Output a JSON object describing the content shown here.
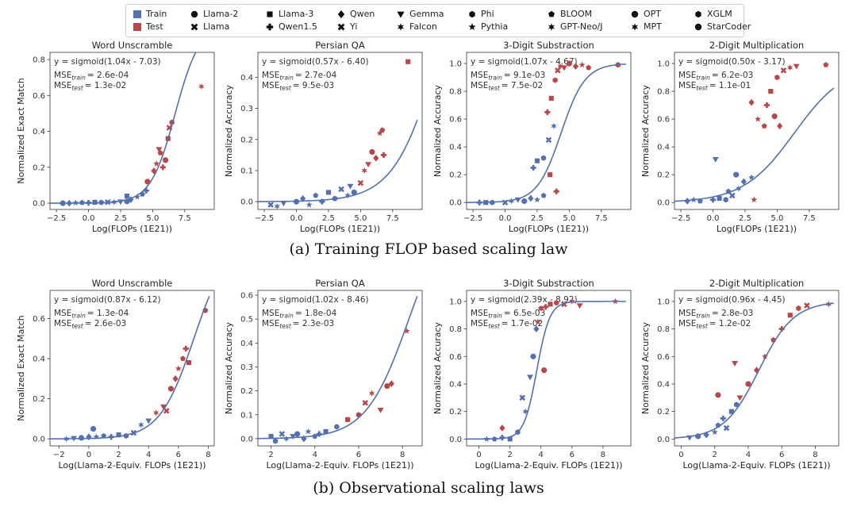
{
  "legend": {
    "groups": [
      {
        "label": "Train",
        "color": "#5470b0",
        "id": "train"
      },
      {
        "label": "Test",
        "color": "#b9474a",
        "id": "test"
      }
    ],
    "models": [
      {
        "label": "Llama-2",
        "marker": "circle"
      },
      {
        "label": "Llama",
        "marker": "x"
      },
      {
        "label": "Llama-3",
        "marker": "square"
      },
      {
        "label": "Qwen1.5",
        "marker": "plus"
      },
      {
        "label": "Qwen",
        "marker": "diamond"
      },
      {
        "label": "Yi",
        "marker": "x"
      },
      {
        "label": "Gemma",
        "marker": "triangle"
      },
      {
        "label": "Falcon",
        "marker": "star6"
      },
      {
        "label": "Phi",
        "marker": "hexagon"
      },
      {
        "label": "Pythia",
        "marker": "star"
      },
      {
        "label": "BLOOM",
        "marker": "pentagon"
      },
      {
        "label": "GPT-Neo/J",
        "marker": "star6"
      },
      {
        "label": "OPT",
        "marker": "circle"
      },
      {
        "label": "MPT",
        "marker": "star6"
      },
      {
        "label": "XGLM",
        "marker": "hexagon"
      },
      {
        "label": "StarCoder",
        "marker": "circle"
      }
    ]
  },
  "captions": {
    "top": "(a) Training FLOP based scaling law",
    "bottom": "(b) Observational scaling laws"
  },
  "chart_data": [
    {
      "type": "scatter",
      "title": "Word Unscramble",
      "xlabel": "Log(FLOPs (1E21))",
      "ylabel": "Normalized Exact Match",
      "xlim": [
        -3,
        9.8
      ],
      "ylim": [
        -0.035,
        0.84
      ],
      "xticks": [
        -2.5,
        0,
        2.5,
        5,
        7.5
      ],
      "xtick_labels": [
        "−2.5",
        "0.0",
        "2.5",
        "5.0",
        "7.5"
      ],
      "yticks": [
        0,
        0.2,
        0.4,
        0.6,
        0.8
      ],
      "ytick_labels": [
        "0.0",
        "0.2",
        "0.4",
        "0.6",
        "0.8"
      ],
      "fit": {
        "a": 1.04,
        "b": -7.03,
        "scale": 1.0
      },
      "equation": "y = sigmoid(1.04x - 7.03)",
      "mse_train_value": "= 2.6e-04",
      "mse_test_value": "= 1.3e-02",
      "train": [
        [
          -2,
          0
        ],
        [
          -1.5,
          0
        ],
        [
          -1,
          0.002
        ],
        [
          -0.5,
          0.003
        ],
        [
          0,
          0.002
        ],
        [
          0.5,
          0.005
        ],
        [
          1,
          0.004
        ],
        [
          1.5,
          0.006
        ],
        [
          2,
          0.006
        ],
        [
          2.5,
          0.008
        ],
        [
          3,
          0.01
        ],
        [
          3.3,
          0.02
        ],
        [
          3.8,
          0.035
        ],
        [
          4.2,
          0.05
        ],
        [
          4.5,
          0.07
        ],
        [
          3,
          0.04
        ]
      ],
      "test": [
        [
          4.6,
          0.12
        ],
        [
          5.1,
          0.18
        ],
        [
          5.3,
          0.22
        ],
        [
          5.6,
          0.28
        ],
        [
          5.8,
          0.2
        ],
        [
          6.2,
          0.36
        ],
        [
          6.5,
          0.45
        ],
        [
          6.3,
          0.42
        ],
        [
          8.8,
          0.65
        ],
        [
          5.5,
          0.3
        ],
        [
          6,
          0.24
        ]
      ]
    },
    {
      "type": "scatter",
      "title": "Persian QA",
      "xlabel": "Log(FLOPs (1E21))",
      "ylabel": "Normalized Accuracy",
      "xlim": [
        -3,
        9.8
      ],
      "ylim": [
        -0.025,
        0.48
      ],
      "xticks": [
        -2.5,
        0,
        2.5,
        5,
        7.5
      ],
      "xtick_labels": [
        "−2.5",
        "0.0",
        "2.5",
        "5.0",
        "7.5"
      ],
      "yticks": [
        0,
        0.1,
        0.2,
        0.3,
        0.4
      ],
      "ytick_labels": [
        "0.0",
        "0.1",
        "0.2",
        "0.3",
        "0.4"
      ],
      "fit": {
        "a": 0.57,
        "b": -6.4,
        "scale": 1.0
      },
      "equation": "y = sigmoid(0.57x - 6.40)",
      "mse_train_value": "= 2.7e-04",
      "mse_test_value": "= 9.5e-03",
      "train": [
        [
          -2,
          -0.01
        ],
        [
          -1.5,
          -0.015
        ],
        [
          -1,
          -0.005
        ],
        [
          0,
          0.0
        ],
        [
          0.5,
          0.01
        ],
        [
          1,
          -0.01
        ],
        [
          1.5,
          0.02
        ],
        [
          2,
          0.0
        ],
        [
          2.5,
          0.03
        ],
        [
          3,
          0.01
        ],
        [
          3.5,
          0.04
        ],
        [
          4,
          0.02
        ],
        [
          4.2,
          0.05
        ],
        [
          4.5,
          0.03
        ]
      ],
      "test": [
        [
          5,
          0.06
        ],
        [
          5.3,
          0.1
        ],
        [
          5.6,
          0.12
        ],
        [
          5.9,
          0.16
        ],
        [
          6.2,
          0.14
        ],
        [
          6.5,
          0.22
        ],
        [
          6.7,
          0.23
        ],
        [
          6.8,
          0.15
        ],
        [
          8.7,
          0.45
        ]
      ]
    },
    {
      "type": "scatter",
      "title": "3-Digit Substraction",
      "xlabel": "Log(FLOPs (1E21))",
      "ylabel": "Normalized Accuracy",
      "xlim": [
        -3,
        9.8
      ],
      "ylim": [
        -0.05,
        1.08
      ],
      "xticks": [
        -2.5,
        0,
        2.5,
        5,
        7.5
      ],
      "xtick_labels": [
        "−2.5",
        "0.0",
        "2.5",
        "5.0",
        "7.5"
      ],
      "yticks": [
        0,
        0.2,
        0.4,
        0.6,
        0.8,
        1.0
      ],
      "ytick_labels": [
        "0.0",
        "0.2",
        "0.4",
        "0.6",
        "0.8",
        "1.0"
      ],
      "fit": {
        "a": 1.07,
        "b": -4.67,
        "scale": 1.0
      },
      "equation": "y = sigmoid(1.07x - 4.67)",
      "mse_train_value": "= 9.1e-03",
      "mse_test_value": "= 7.5e-02",
      "train": [
        [
          -2,
          0
        ],
        [
          -1.5,
          0
        ],
        [
          -1,
          0
        ],
        [
          0,
          0
        ],
        [
          0.5,
          0.01
        ],
        [
          1,
          0.02
        ],
        [
          1.5,
          0.01
        ],
        [
          2,
          0.03
        ],
        [
          2.5,
          0.02
        ],
        [
          3,
          0.05
        ],
        [
          2.2,
          0.25
        ],
        [
          2.5,
          0.3
        ],
        [
          3,
          0.32
        ],
        [
          3.4,
          0.45
        ],
        [
          3.8,
          0.55
        ]
      ],
      "test": [
        [
          3.3,
          0.65
        ],
        [
          3.6,
          0.75
        ],
        [
          3.9,
          0.88
        ],
        [
          4.1,
          0.95
        ],
        [
          4.3,
          0.98
        ],
        [
          4.6,
          0.97
        ],
        [
          5,
          1.0
        ],
        [
          5.5,
          0.98
        ],
        [
          6,
          0.99
        ],
        [
          6.5,
          0.97
        ],
        [
          4,
          0.08
        ],
        [
          3.5,
          0.2
        ],
        [
          8.8,
          0.99
        ]
      ]
    },
    {
      "type": "scatter",
      "title": "2-Digit Multiplication",
      "xlabel": "Log(FLOPs (1E21))",
      "ylabel": "Normalized Accuracy",
      "xlim": [
        -3,
        9.8
      ],
      "ylim": [
        -0.05,
        1.08
      ],
      "xticks": [
        -2.5,
        0,
        2.5,
        5,
        7.5
      ],
      "xtick_labels": [
        "−2.5",
        "0.0",
        "2.5",
        "5.0",
        "7.5"
      ],
      "yticks": [
        0,
        0.2,
        0.4,
        0.6,
        0.8,
        1.0
      ],
      "ytick_labels": [
        "0.0",
        "0.2",
        "0.4",
        "0.6",
        "0.8",
        "1.0"
      ],
      "fit": {
        "a": 0.5,
        "b": -3.17,
        "scale": 1.0
      },
      "equation": "y = sigmoid(0.50x - 3.17)",
      "mse_train_value": "= 6.2e-03",
      "mse_test_value": "= 1.1e-01",
      "train": [
        [
          -2,
          0.01
        ],
        [
          -1.5,
          0.02
        ],
        [
          -1,
          0.01
        ],
        [
          0,
          0.02
        ],
        [
          0.5,
          0.03
        ],
        [
          1,
          0.02
        ],
        [
          1.5,
          0.05
        ],
        [
          2,
          0.1
        ],
        [
          0.2,
          0.31
        ],
        [
          1.8,
          0.2
        ],
        [
          2.4,
          0.15
        ],
        [
          3,
          0.18
        ],
        [
          1.2,
          0.08
        ]
      ],
      "test": [
        [
          3,
          0.72
        ],
        [
          3.5,
          0.6
        ],
        [
          4,
          0.55
        ],
        [
          4.2,
          0.7
        ],
        [
          4.5,
          0.8
        ],
        [
          5,
          0.9
        ],
        [
          5.5,
          0.95
        ],
        [
          6,
          0.97
        ],
        [
          6.5,
          0.98
        ],
        [
          4.8,
          0.62
        ],
        [
          5.2,
          0.55
        ],
        [
          3.2,
          0.02
        ],
        [
          8.8,
          0.99
        ]
      ]
    },
    {
      "type": "scatter",
      "title": "Word Unscramble",
      "xlabel": "Log(Llama-2-Equiv. FLOPs (1E21))",
      "ylabel": "Normalized Exact Match",
      "xlim": [
        -2.6,
        8.4
      ],
      "ylim": [
        -0.035,
        0.74
      ],
      "xticks": [
        -2,
        0,
        2,
        4,
        6,
        8
      ],
      "xtick_labels": [
        "−2",
        "0",
        "2",
        "4",
        "6",
        "8"
      ],
      "yticks": [
        0,
        0.2,
        0.4,
        0.6
      ],
      "ytick_labels": [
        "0.0",
        "0.2",
        "0.4",
        "0.6"
      ],
      "fit": {
        "a": 0.87,
        "b": -6.12,
        "scale": 1.0
      },
      "equation": "y = sigmoid(0.87x - 6.12)",
      "mse_train_value": "= 1.3e-04",
      "mse_test_value": "= 2.6e-03",
      "train": [
        [
          -1.5,
          0
        ],
        [
          -1,
          0.003
        ],
        [
          -0.5,
          0.005
        ],
        [
          0,
          0.01
        ],
        [
          0.5,
          0.01
        ],
        [
          1,
          0.015
        ],
        [
          1.5,
          0.01
        ],
        [
          2,
          0.02
        ],
        [
          2.5,
          0.015
        ],
        [
          3,
          0.03
        ],
        [
          3.5,
          0.07
        ],
        [
          4,
          0.09
        ],
        [
          0.3,
          0.05
        ]
      ],
      "test": [
        [
          4.5,
          0.13
        ],
        [
          5,
          0.16
        ],
        [
          5.5,
          0.25
        ],
        [
          5.8,
          0.3
        ],
        [
          6,
          0.35
        ],
        [
          6.3,
          0.4
        ],
        [
          6.5,
          0.45
        ],
        [
          6.7,
          0.38
        ],
        [
          7.8,
          0.64
        ],
        [
          5.2,
          0.14
        ]
      ]
    },
    {
      "type": "scatter",
      "title": "Persian QA",
      "xlabel": "Log(Llama-2-Equiv. FLOPs (1E21))",
      "ylabel": "Normalized Accuracy",
      "xlim": [
        1.4,
        8.9
      ],
      "ylim": [
        -0.03,
        0.62
      ],
      "xticks": [
        2,
        4,
        6,
        8
      ],
      "xtick_labels": [
        "2",
        "4",
        "6",
        "8"
      ],
      "yticks": [
        0,
        0.1,
        0.2,
        0.3,
        0.4,
        0.5,
        0.6
      ],
      "ytick_labels": [
        "0.0",
        "0.1",
        "0.2",
        "0.3",
        "0.4",
        "0.5",
        "0.6"
      ],
      "fit": {
        "a": 1.02,
        "b": -8.46,
        "scale": 1.0
      },
      "equation": "y = sigmoid(1.02x - 8.46)",
      "mse_train_value": "= 1.8e-04",
      "mse_test_value": "= 2.3e-03",
      "train": [
        [
          2,
          0.01
        ],
        [
          2.2,
          -0.01
        ],
        [
          2.5,
          0.02
        ],
        [
          2.7,
          0.0
        ],
        [
          3,
          0.01
        ],
        [
          3.2,
          0.02
        ],
        [
          3.5,
          0.0
        ],
        [
          3.7,
          0.03
        ],
        [
          4,
          0.01
        ],
        [
          4.2,
          0.02
        ],
        [
          4.5,
          0.03
        ],
        [
          5,
          0.05
        ]
      ],
      "test": [
        [
          5.5,
          0.08
        ],
        [
          6,
          0.1
        ],
        [
          6.3,
          0.15
        ],
        [
          6.6,
          0.19
        ],
        [
          7,
          0.12
        ],
        [
          7.3,
          0.22
        ],
        [
          7.5,
          0.23
        ],
        [
          8.2,
          0.45
        ]
      ]
    },
    {
      "type": "scatter",
      "title": "3-Digit Substraction",
      "xlabel": "Log(Llama-2-Equiv. FLOPs (1E21))",
      "ylabel": "Normalized Accuracy",
      "xlim": [
        -0.8,
        9.8
      ],
      "ylim": [
        -0.05,
        1.08
      ],
      "xticks": [
        0,
        2,
        4,
        6,
        8
      ],
      "xtick_labels": [
        "0",
        "2",
        "4",
        "6",
        "8"
      ],
      "yticks": [
        0,
        0.2,
        0.4,
        0.6,
        0.8,
        1.0
      ],
      "ytick_labels": [
        "0.0",
        "0.2",
        "0.4",
        "0.6",
        "0.8",
        "1.0"
      ],
      "fit": {
        "a": 2.39,
        "b": -8.92,
        "scale": 1.0
      },
      "equation": "y = sigmoid(2.39x - 8.92)",
      "mse_train_value": "= 6.5e-03",
      "mse_test_value": "= 1.7e-02",
      "train": [
        [
          0.5,
          0
        ],
        [
          1,
          0
        ],
        [
          1.5,
          0.01
        ],
        [
          2,
          0.0
        ],
        [
          2.5,
          0.05
        ],
        [
          2.8,
          0.3
        ],
        [
          3,
          0.2
        ],
        [
          3.3,
          0.45
        ],
        [
          3.5,
          0.6
        ],
        [
          3.7,
          0.8
        ]
      ],
      "test": [
        [
          3.8,
          0.85
        ],
        [
          4,
          0.95
        ],
        [
          4.3,
          0.96
        ],
        [
          4.6,
          0.98
        ],
        [
          5,
          0.99
        ],
        [
          5.5,
          0.98
        ],
        [
          6,
          1.0
        ],
        [
          6.5,
          0.97
        ],
        [
          4.2,
          0.5
        ],
        [
          1.5,
          0.08
        ],
        [
          8.8,
          1.0
        ]
      ]
    },
    {
      "type": "scatter",
      "title": "2-Digit Multiplication",
      "xlabel": "Log(Llama-2-Equiv. FLOPs (1E21))",
      "ylabel": "Normalized Accuracy",
      "xlim": [
        -0.4,
        9.4
      ],
      "ylim": [
        -0.05,
        1.08
      ],
      "xticks": [
        0,
        2,
        4,
        6,
        8
      ],
      "xtick_labels": [
        "0",
        "2",
        "4",
        "6",
        "8"
      ],
      "yticks": [
        0,
        0.2,
        0.4,
        0.6,
        0.8,
        1.0
      ],
      "ytick_labels": [
        "0.0",
        "0.2",
        "0.4",
        "0.6",
        "0.8",
        "1.0"
      ],
      "fit": {
        "a": 0.96,
        "b": -4.45,
        "scale": 1.0
      },
      "equation": "y = sigmoid(0.96x - 4.45)",
      "mse_train_value": "= 2.8e-03",
      "mse_test_value": "= 1.2e-02",
      "train": [
        [
          0.5,
          0.01
        ],
        [
          1,
          0.02
        ],
        [
          1.5,
          0.03
        ],
        [
          2,
          0.05
        ],
        [
          2.2,
          0.1
        ],
        [
          2.5,
          0.15
        ],
        [
          3,
          0.2
        ],
        [
          3.3,
          0.25
        ],
        [
          2.7,
          0.08
        ]
      ],
      "test": [
        [
          3.5,
          0.3
        ],
        [
          4,
          0.4
        ],
        [
          4.5,
          0.5
        ],
        [
          5,
          0.6
        ],
        [
          5.5,
          0.72
        ],
        [
          6,
          0.8
        ],
        [
          6.5,
          0.9
        ],
        [
          7,
          0.95
        ],
        [
          7.5,
          0.97
        ],
        [
          8.8,
          0.98
        ],
        [
          3.2,
          0.55
        ],
        [
          2.2,
          0.32
        ]
      ]
    }
  ]
}
